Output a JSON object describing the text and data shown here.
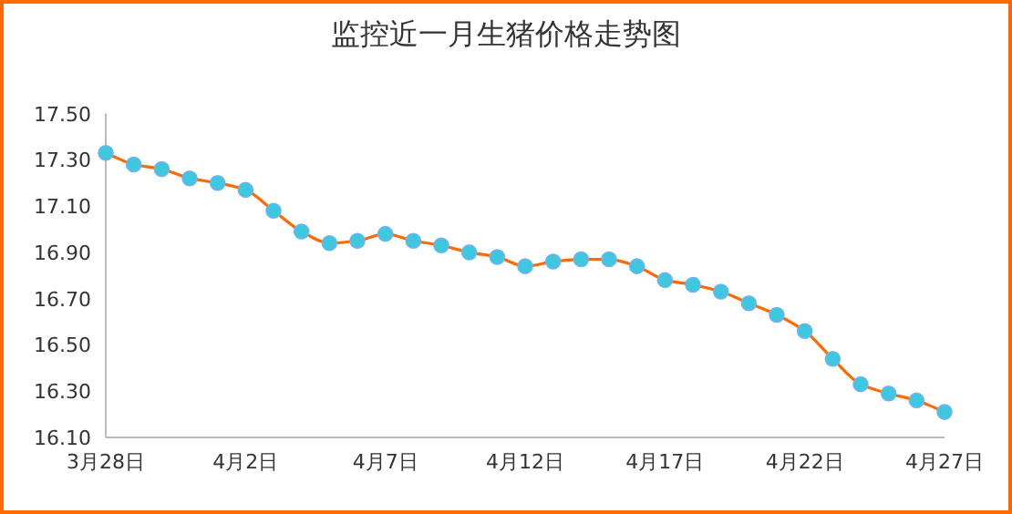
{
  "chart_data": {
    "type": "line",
    "title": "监控近一月生猪价格走势图",
    "categories": [
      "3月28日",
      null,
      null,
      null,
      null,
      "4月2日",
      null,
      null,
      null,
      null,
      "4月7日",
      null,
      null,
      null,
      null,
      "4月12日",
      null,
      null,
      null,
      null,
      "4月17日",
      null,
      null,
      null,
      null,
      "4月22日",
      null,
      null,
      null,
      null,
      "4月27日"
    ],
    "series": [
      {
        "color": "#ff6a00",
        "colors": [
          "#3ec8e0",
          "#3ec8e0",
          "#3ec8e0",
          "#3ec8e0",
          "#3ec8e0",
          "#3ec8e0",
          "#3ec8e0",
          "#3ec8e0",
          "#3ec8e0",
          "#3ec8e0",
          "#3ec8e0",
          "#3ec8e0",
          "#3ec8e0",
          "#3ec8e0",
          "#3ec8e0",
          "#3ec8e0",
          "#3ec8e0",
          "#3ec8e0",
          "#3ec8e0",
          "#3ec8e0",
          "#3ec8e0",
          "#3ec8e0",
          "#3ec8e0",
          "#3ec8e0",
          "#3ec8e0",
          "#3ec8e0",
          "#3ec8e0",
          "#3ec8e0",
          "#3ec8e0",
          "#3ec8e0",
          "#3ec8e0"
        ],
        "values": [
          17.33,
          17.28,
          17.26,
          17.22,
          17.2,
          17.17,
          17.08,
          16.99,
          16.94,
          16.95,
          16.98,
          16.95,
          16.93,
          16.9,
          16.88,
          16.84,
          16.86,
          16.87,
          16.87,
          16.84,
          16.78,
          16.76,
          16.73,
          16.68,
          16.63,
          16.56,
          16.44,
          16.33,
          16.29,
          16.26,
          16.21
        ]
      }
    ],
    "ylim": [
      16.1,
      17.5
    ],
    "yticks": [
      {
        "value": 16.1,
        "label": "16.10"
      },
      {
        "value": 16.3,
        "label": "16.30"
      },
      {
        "value": 16.5,
        "label": "16.50"
      },
      {
        "value": 16.7,
        "label": "16.70"
      },
      {
        "value": 16.9,
        "label": "16.90"
      },
      {
        "value": 17.1,
        "label": "17.10"
      },
      {
        "value": 17.3,
        "label": "17.30"
      },
      {
        "value": 17.5,
        "label": "17.50"
      }
    ],
    "marker": "circle",
    "line_style": "solid",
    "grid": false
  }
}
